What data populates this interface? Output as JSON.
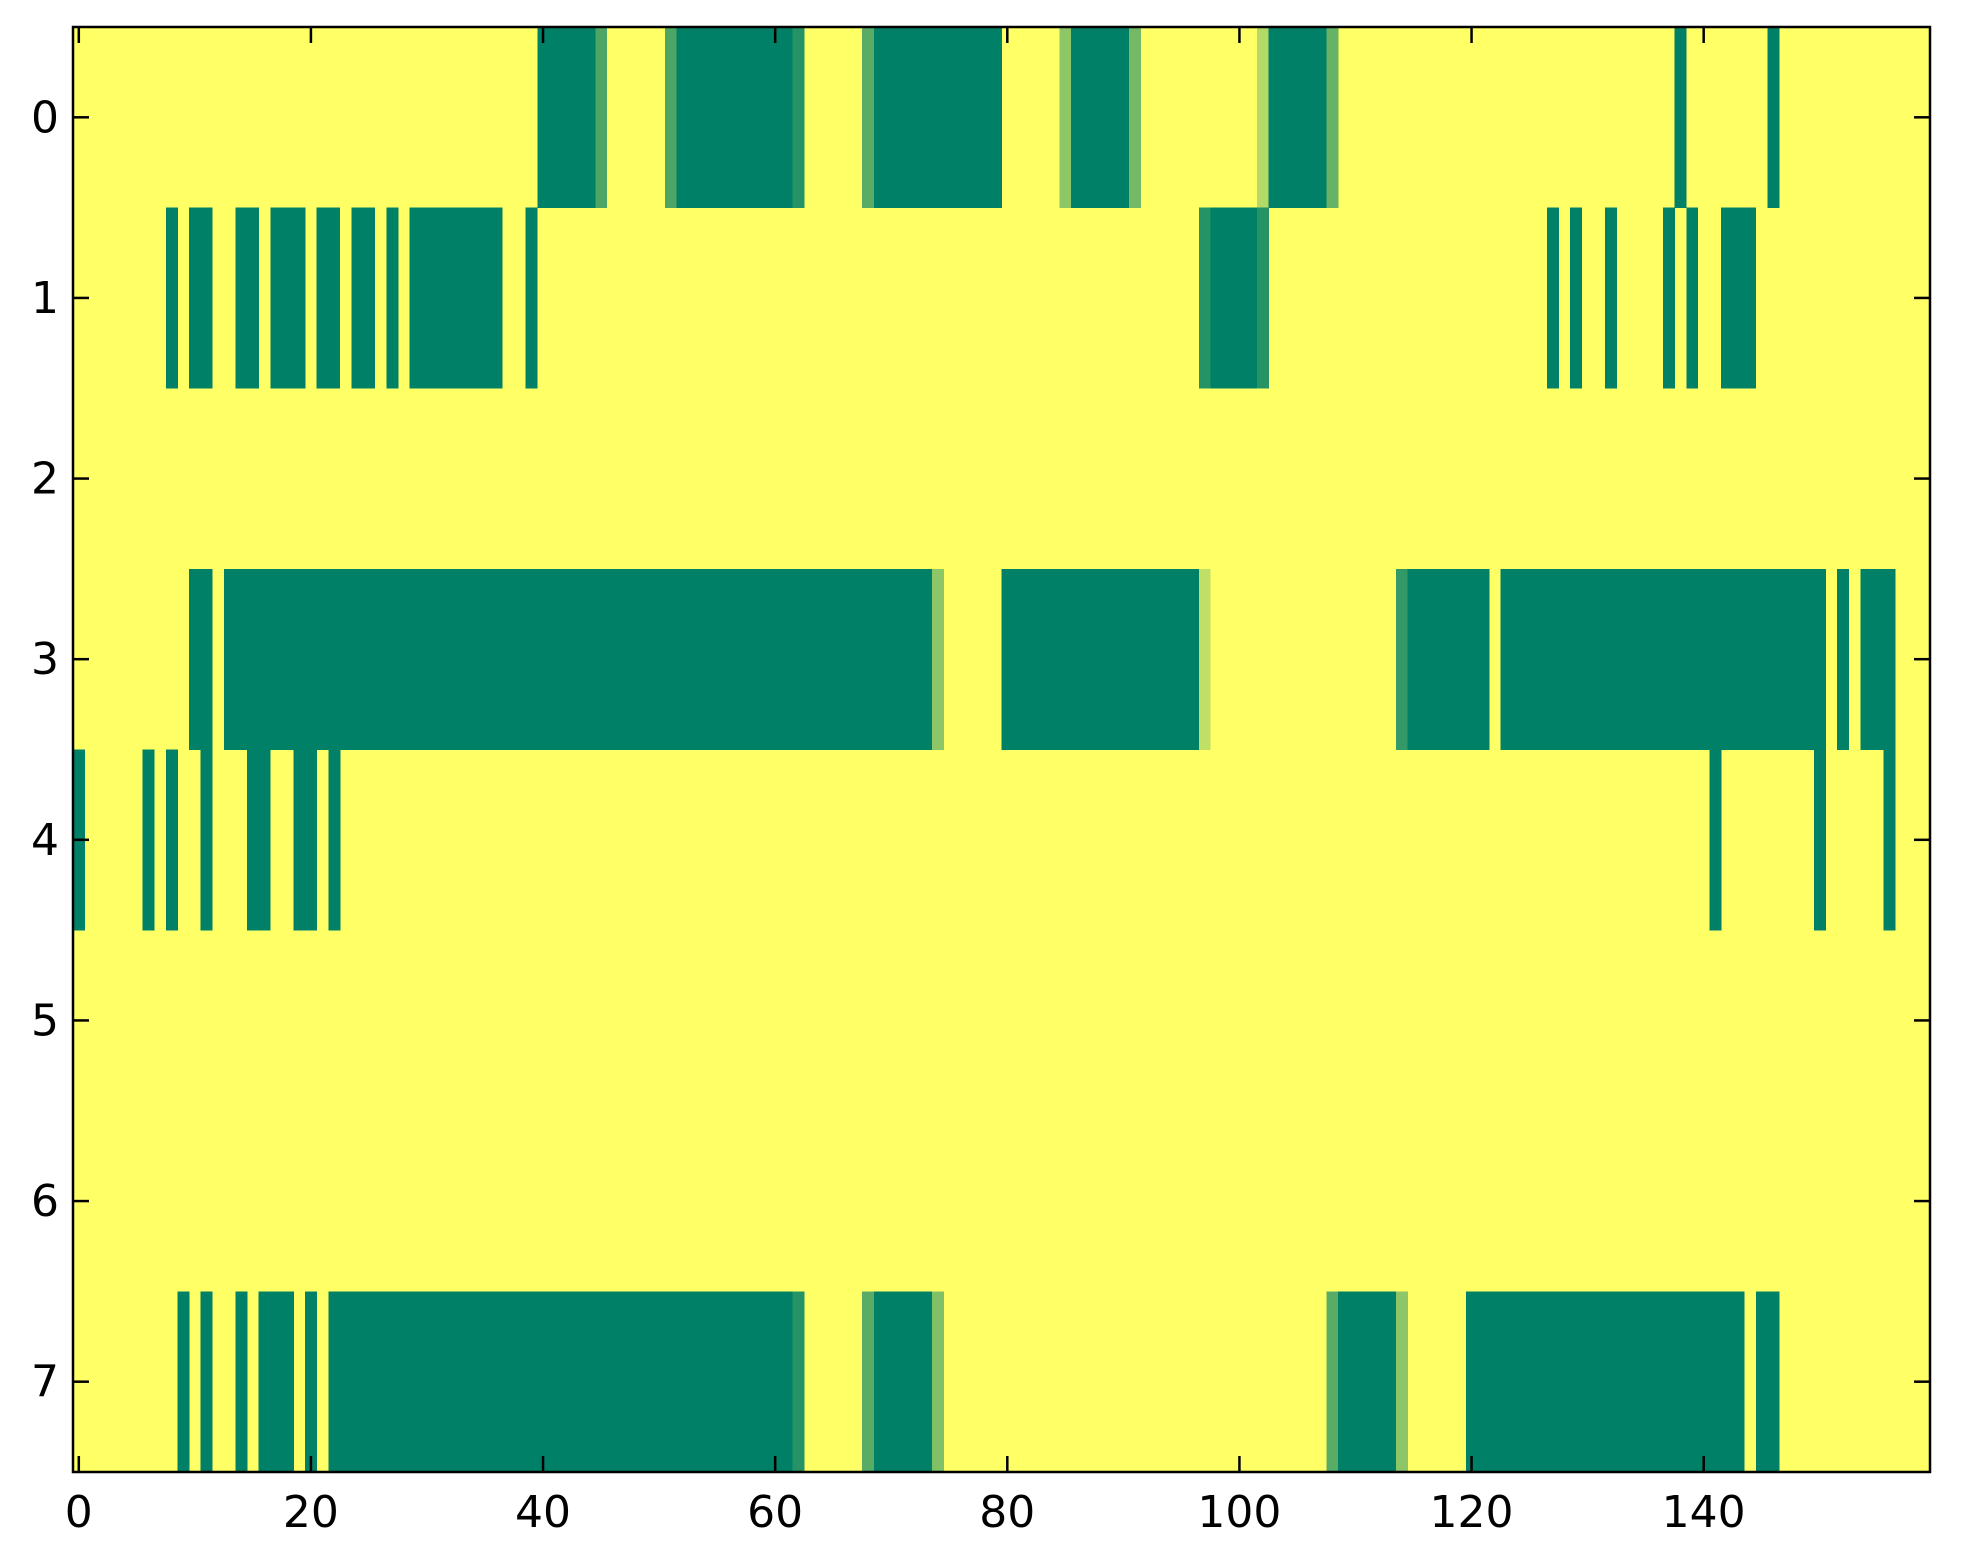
{
  "chart_data": {
    "type": "heatmap",
    "title": "",
    "xlabel": "",
    "ylabel": "",
    "xlim": [
      -0.5,
      159.5
    ],
    "ylim": [
      7.5,
      -0.5
    ],
    "xticks": [
      0,
      20,
      40,
      60,
      80,
      100,
      120,
      140
    ],
    "xtick_labels": [
      "0",
      "20",
      "40",
      "60",
      "80",
      "100",
      "120",
      "140"
    ],
    "yticks": [
      0,
      1,
      2,
      3,
      4,
      5,
      6,
      7
    ],
    "ytick_labels": [
      "0",
      "1",
      "2",
      "3",
      "4",
      "5",
      "6",
      "7"
    ],
    "background_value": 0,
    "colormap": "summer_r",
    "colors": {
      "low": "#ffff66",
      "high": "#008066",
      "frame": "#000000"
    },
    "grid": false,
    "rows": [
      {
        "row": 0,
        "segments": [
          [
            40,
            44,
            1
          ],
          [
            45,
            45,
            0.7
          ],
          [
            51,
            51,
            0.7
          ],
          [
            52,
            61,
            1
          ],
          [
            62,
            62,
            0.85
          ],
          [
            68,
            68,
            0.65
          ],
          [
            69,
            79,
            1
          ],
          [
            85,
            85,
            0.45
          ],
          [
            86,
            90,
            1
          ],
          [
            91,
            91,
            0.55
          ],
          [
            102,
            102,
            0.3
          ],
          [
            103,
            107,
            1
          ],
          [
            108,
            108,
            0.6
          ],
          [
            138,
            138,
            1
          ],
          [
            146,
            146,
            1
          ]
        ]
      },
      {
        "row": 1,
        "segments": [
          [
            8,
            8,
            1
          ],
          [
            10,
            11,
            1
          ],
          [
            14,
            15,
            1
          ],
          [
            17,
            19,
            1
          ],
          [
            21,
            22,
            1
          ],
          [
            24,
            25,
            1
          ],
          [
            27,
            27,
            1
          ],
          [
            29,
            36,
            1
          ],
          [
            39,
            39,
            1
          ],
          [
            97,
            97,
            0.85
          ],
          [
            98,
            101,
            1
          ],
          [
            102,
            102,
            0.85
          ],
          [
            127,
            127,
            1
          ],
          [
            129,
            129,
            1
          ],
          [
            132,
            132,
            1
          ],
          [
            137,
            137,
            1
          ],
          [
            139,
            139,
            1
          ],
          [
            142,
            144,
            1
          ]
        ]
      },
      {
        "row": 2,
        "segments": []
      },
      {
        "row": 3,
        "segments": [
          [
            10,
            11,
            1
          ],
          [
            13,
            73,
            1
          ],
          [
            74,
            74,
            0.45
          ],
          [
            80,
            96,
            1
          ],
          [
            97,
            97,
            0.25
          ],
          [
            114,
            114,
            0.8
          ],
          [
            115,
            121,
            1
          ],
          [
            123,
            150,
            1
          ],
          [
            152,
            152,
            1
          ],
          [
            154,
            156,
            1
          ]
        ]
      },
      {
        "row": 4,
        "segments": [
          [
            0,
            0,
            1
          ],
          [
            6,
            6,
            1
          ],
          [
            8,
            8,
            1
          ],
          [
            11,
            11,
            1
          ],
          [
            15,
            16,
            1
          ],
          [
            19,
            20,
            1
          ],
          [
            22,
            22,
            1
          ],
          [
            141,
            141,
            1
          ],
          [
            150,
            150,
            1
          ],
          [
            156,
            156,
            1
          ]
        ]
      },
      {
        "row": 5,
        "segments": []
      },
      {
        "row": 6,
        "segments": []
      },
      {
        "row": 7,
        "segments": [
          [
            9,
            9,
            1
          ],
          [
            11,
            11,
            1
          ],
          [
            14,
            14,
            1
          ],
          [
            16,
            18,
            1
          ],
          [
            20,
            20,
            1
          ],
          [
            22,
            61,
            1
          ],
          [
            62,
            62,
            0.85
          ],
          [
            68,
            68,
            0.65
          ],
          [
            69,
            73,
            1
          ],
          [
            74,
            74,
            0.5
          ],
          [
            108,
            108,
            0.65
          ],
          [
            109,
            113,
            1
          ],
          [
            114,
            114,
            0.45
          ],
          [
            120,
            143,
            1
          ],
          [
            145,
            146,
            1
          ]
        ]
      }
    ]
  }
}
